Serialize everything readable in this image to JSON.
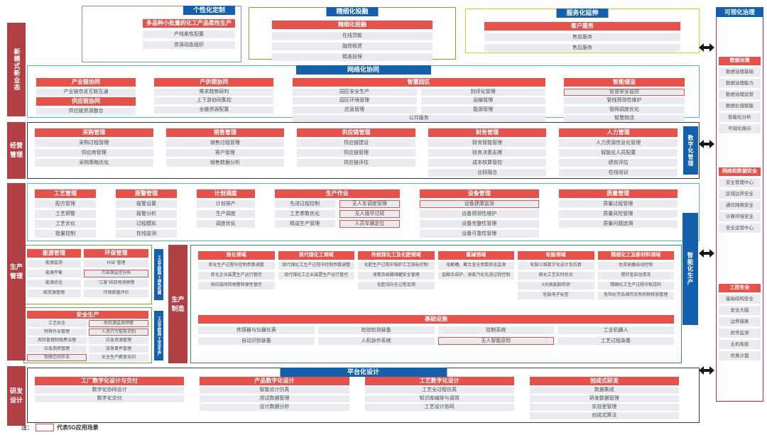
{
  "palette": {
    "red": "#e8504a",
    "dark_red": "#b04043",
    "blue": "#1360ae",
    "teal": "#52b8b1",
    "indigo": "#7b8fd9",
    "olive": "#ab9226",
    "yellow": "#f3c517",
    "magenta": "#c9245d",
    "green": "#70a844",
    "black_border": "#3a3a3a",
    "field_border": "#417e79",
    "item_bg": "#e9ebee",
    "g5_outline": "#e8504a"
  },
  "sidebar": [
    {
      "label": "新模式新业态",
      "lines": [
        "新",
        "模",
        "式",
        "新",
        "业",
        "态"
      ]
    },
    {
      "label": "经营管理",
      "lines": [
        "经营",
        "管理"
      ]
    },
    {
      "label": "生产管理",
      "lines": [
        "生产",
        "管理"
      ]
    },
    {
      "label": "研发设计",
      "lines": [
        "研发",
        "设计"
      ]
    }
  ],
  "top_boxes": [
    {
      "header": "个性化定制",
      "border_color": "#7b8fd9",
      "title": "多品种小批量的化工产品柔性生产",
      "items": [
        "产线柔性配置",
        "资源动态组织"
      ]
    },
    {
      "header": "精细化投融",
      "border_color": "#ab9226",
      "title": "精细化投融",
      "items": [
        "在线贷款",
        "融资租赁",
        "精准投保"
      ]
    },
    {
      "header": "服务化延伸",
      "border_color": "#f3c517",
      "title": "客户服务",
      "items": [
        "售前服务",
        "售后服务"
      ]
    }
  ],
  "network_row": {
    "header": "网络化协同",
    "columns": [
      {
        "type": "stack",
        "rows": [
          {
            "h": "产业链协同"
          },
          {
            "i": "产业链信息互联互通"
          },
          {
            "h": "供应链协同"
          },
          {
            "i": "供应链资源整合"
          }
        ]
      },
      {
        "type": "simple",
        "title": "产供销协同",
        "items": [
          "需求趋势研判",
          "上下游协同集控",
          "全链资源配置"
        ]
      },
      {
        "type": "double",
        "title": "智慧园区",
        "col1": [
          "园区安全生产",
          "园区环境管理",
          "应急管理"
        ],
        "col2": [
          "封闭化管理",
          "运输管理",
          "能源管理"
        ],
        "footer": "公共服务"
      },
      {
        "type": "simple",
        "title": "智能储运",
        "items": [
          {
            "t": "管道安全监控",
            "g5": true
          },
          "管线预测性维护",
          "管网调度优化",
          "智慧物流"
        ]
      }
    ]
  },
  "management_row": {
    "vertical_label": "数字化管理",
    "columns": [
      {
        "title": "采购管理",
        "items": [
          "采购过程管理",
          "供应商管理",
          "采购策略优化"
        ]
      },
      {
        "title": "销售管理",
        "items": [
          "销售过程管理",
          "客户管理",
          "销售数据分析"
        ]
      },
      {
        "title": "供应链管理",
        "items": [
          "供应链建设",
          "供应链管理",
          "供应链评估"
        ]
      },
      {
        "title": "财务管理",
        "items": [
          "财务智能管理",
          "财务决策支撑",
          "成本核算管控",
          "业财融合"
        ]
      },
      {
        "title": "人力管理",
        "items": [
          "人力资源信息化管理",
          "智能化人员配置",
          "绩效评估",
          "在线培训"
        ]
      }
    ]
  },
  "production_top_row": {
    "vertical_label": "智能化生产",
    "columns": [
      {
        "type": "simple",
        "title": "工艺管理",
        "items": [
          "配方管理",
          "工艺预警",
          "工艺优化",
          "批量控制"
        ]
      },
      {
        "type": "simple",
        "title": "报警管理",
        "items": [
          "报警设置",
          "报警分析",
          "过程模拟",
          "在线监测"
        ]
      },
      {
        "type": "simple",
        "title": "计划调度",
        "items": [
          "计划排产",
          "生产调度",
          "调度优化"
        ]
      },
      {
        "type": "double",
        "title": "生产作业",
        "col1": [
          "先进过程控制",
          "工艺参数优化",
          "精益生产管理"
        ],
        "col2": [
          {
            "t": "无人车调度管理",
            "g5": true
          },
          {
            "t": "无人值守过磅",
            "g5": true
          },
          {
            "t": "人员车辆定位",
            "g5": true
          }
        ]
      },
      {
        "type": "simple",
        "title": "设备管理",
        "items": [
          {
            "t": "设备健康监测",
            "g5": true
          },
          "设备预测性维护",
          "设备完整性管理",
          "设备可靠性管理"
        ]
      },
      {
        "type": "simple",
        "title": "质量管理",
        "items": [
          "质量过程管理",
          "质量风险管理",
          "质量问题追溯"
        ]
      }
    ]
  },
  "production_bottom": {
    "center_label": "生产制造",
    "center_label_lines": [
      "生产",
      "制造"
    ],
    "energy_env_box": {
      "side_label": "工业互联网＋绿色低碳",
      "columns": [
        {
          "title": "能源管理",
          "items": [
            "能源监测",
            "能源平衡",
            "能源优化",
            "碳资源管理"
          ]
        },
        {
          "title": "环保管理",
          "items": [
            "HSE 管理",
            {
              "t": "污染源监控分析",
              "g5": true
            },
            "“三废”排放预测预警",
            "环保质量评价"
          ]
        }
      ]
    },
    "safety_box": {
      "side_label": "工业互联网＋安全生产",
      "title": "安全生产",
      "col1": [
        "工艺安全",
        "特殊作业管理",
        "风险管理和隐患治理",
        "应急指挥管理",
        {
          "t": "受限空间作业",
          "g5": true
        }
      ],
      "col2": [
        {
          "t": "危险源监测预警",
          "g5": true
        },
        {
          "t": "人员行为智能识别",
          "g5": true
        },
        "应急资源管理",
        "突发事件管理",
        "安全生产教育培训"
      ]
    },
    "fields": [
      {
        "title": "炼化领域",
        "items": [
          "炼化生产过程中控制参数调整",
          "炼化企业装置生产运行管控",
          "供应链风险预警和弹性管控"
        ]
      },
      {
        "title": "现代煤化工领域",
        "items": [
          "现代煤化工生产过程中控制参数调整",
          "现代煤化工企业装置生产运行管控"
        ]
      },
      {
        "title": "传统煤化工及化肥领域",
        "items": [
          "化肥生产过程中锅炉工艺指标控制",
          "液氨及硫酸储罐安全管理",
          "化肥流向全过程追溯"
        ]
      },
      {
        "title": "氯碱领域",
        "items": [
          "电解槽、聚合釜全参数状态监测",
          "盐酸合成炉、液氯汽化先进过程控制"
        ]
      },
      {
        "title": "轮胎领域",
        "items": [
          "轮胎三维数字化设计及仿真",
          "硫化工艺实时优化",
          "X光病疵胎检测",
          "轮胎电子标签"
        ]
      },
      {
        "title": "精细化工及新材料领域",
        "items": [
          "色浆研磨自动控制",
          "搅拌釜自动清洗",
          "精细化工生产过程中取送料",
          "危险化学品储存及有机物排放管理"
        ]
      }
    ],
    "infrastructure": {
      "title": "基础设施",
      "rows": [
        [
          "传感器与仪器仪表",
          "检验检测装备",
          "控制系统",
          "工业机器人"
        ],
        [
          "自动识别装备",
          "人机协作系统",
          {
            "t": "无人智能巡检",
            "g5": true
          },
          "工艺过程装备"
        ]
      ]
    }
  },
  "rnd_row": {
    "header": "平台化设计",
    "columns": [
      {
        "title": "工厂数字化设计与交付",
        "items": [
          "数字化协同设计",
          "数字化交付"
        ]
      },
      {
        "title": "产品数字化设计",
        "items": [
          "智能设计仿真",
          "测试数据管理",
          "设计数据分析"
        ]
      },
      {
        "title": "工艺数字化设计",
        "items": [
          "工艺全过程仿真",
          "知识库编排与调用",
          "工艺设计协同"
        ]
      },
      {
        "title": "创成式研发",
        "items": [
          "数据集成",
          "研发数据管理",
          "实验室管理",
          "创成式算法"
        ]
      }
    ]
  },
  "right_panel": {
    "header": "可视化治理",
    "groups": [
      {
        "title": "数据治理",
        "items": [
          "数据治理基础",
          "数据治理能力",
          "数据治理运营",
          "数据价值赋能",
          "智能化分析",
          "可视化展示"
        ]
      },
      {
        "title": "网络和数据安全",
        "items": [
          "安全管理中心",
          "区域边界安全",
          "通信网络安全",
          "计算环境安全",
          "安全运营中心"
        ]
      },
      {
        "title": "工控安全",
        "items": [
          "基础结构安全",
          "安全大脑",
          "边界隔离",
          "异常监测",
          "主机免疫",
          "仿真沙盘"
        ]
      }
    ]
  },
  "legend": {
    "note_prefix": "注：",
    "label": "代表5G应用场景"
  }
}
